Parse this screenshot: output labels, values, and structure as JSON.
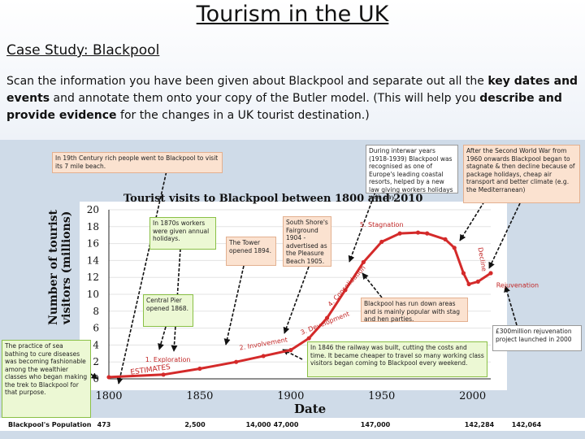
{
  "slide": {
    "title": "Tourism in the UK",
    "subtitle": "Case Study: Blackpool",
    "intro": {
      "p1": "Scan the information you have been given about Blackpool and separate out all the ",
      "b1": "key dates and events",
      "p2": " and annotate them onto your copy of the Butler model. (This will help you ",
      "b2": "describe and provide evidence",
      "p3": " for the changes in a UK tourist destination.)"
    }
  },
  "chart_data": {
    "type": "line",
    "title": "Tourist visits to Blackpool between 1800 and 2010",
    "xlabel": "Date",
    "ylabel": "Number of tourist visitors (millions)",
    "xlim": [
      1800,
      2010
    ],
    "ylim": [
      0,
      20
    ],
    "x_ticks": [
      "1800",
      "1850",
      "1900",
      "1950",
      "2000"
    ],
    "y_ticks": [
      "0",
      "2",
      "4",
      "6",
      "8",
      "10",
      "12",
      "14",
      "16",
      "18",
      "20"
    ],
    "series": [
      {
        "color": "#d42a2a",
        "x": [
          1800,
          1830,
          1850,
          1870,
          1885,
          1900,
          1910,
          1920,
          1930,
          1940,
          1950,
          1960,
          1970,
          1975,
          1985,
          1990,
          1995,
          1998,
          2003,
          2010
        ],
        "y": [
          0.2,
          0.5,
          1.2,
          2.0,
          2.7,
          3.4,
          4.8,
          7.2,
          10.5,
          13.8,
          16.2,
          17.2,
          17.3,
          17.2,
          16.5,
          15.5,
          12.5,
          11.2,
          11.5,
          12.5
        ]
      }
    ],
    "line_labels": {
      "exploration": "1. Exploration",
      "involvement": "2. Involvement",
      "development": "3. Development",
      "consolidation": "4. Consolidation",
      "stagnation": "5. Stagnation",
      "decline": "Decline",
      "rejuvenation": "Rejuvenation",
      "estimates": "ESTIMATES"
    },
    "population": {
      "label": "Blackpool's Population",
      "values": [
        "473",
        "2,500",
        "14,000",
        "47,000",
        "147,000",
        "142,284",
        "142,064"
      ]
    }
  },
  "annotations": {
    "rich_people": "In 19th Century rich people went to Blackpool to visit its 7 mile beach.",
    "sea_bathing": "The practice of sea bathing to cure diseases was becoming fashionable among the wealthier classes who began making the trek to Blackpool for that purpose.",
    "annual_holidays": "In 1870s workers were given annual holidays.",
    "tower": "The Tower opened 1894.",
    "fairground": "South Shore's Fairground 1904 - advertised as the Pleasure Beach 1905.",
    "central_pier": "Central Pier opened 1868.",
    "interwar": "During interwar years (1918-1939) Blackpool was recognised as one of Europe's leading coastal resorts, helped by a new law giving workers holidays with pay.",
    "after_ww2": "After the Second World War from 1960 onwards Blackpool began to stagnate & then decline because of package holidays, cheap air transport and better climate (e.g. the Mediterranean)",
    "run_down": "Blackpool has run down areas and is mainly popular with stag and hen parties.",
    "rejuvenation_project": "£300million rejuvenation project launched in 2000",
    "railway": "In 1846 the railway was built, cutting the costs and time. It became cheaper to travel so many working class visitors began coming to Blackpool every weekend."
  }
}
